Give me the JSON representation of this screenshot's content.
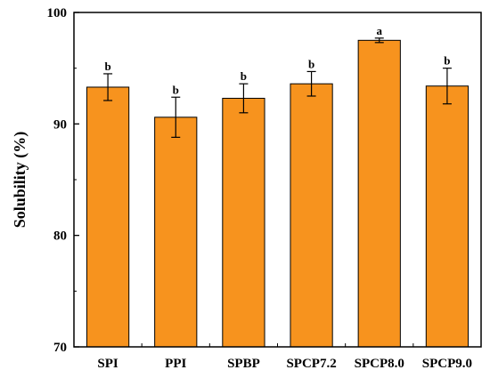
{
  "chart_data": {
    "type": "bar",
    "categories": [
      "SPI",
      "PPI",
      "SPBP",
      "SPCP7.2",
      "SPCP8.0",
      "SPCP9.0"
    ],
    "values": [
      93.3,
      90.6,
      92.3,
      93.6,
      97.5,
      93.4
    ],
    "errors": [
      1.2,
      1.8,
      1.3,
      1.1,
      0.2,
      1.6
    ],
    "significance": [
      "b",
      "b",
      "b",
      "b",
      "a",
      "b"
    ],
    "ylabel": "Solubility (%)",
    "xlabel": "",
    "ylim": [
      70,
      100
    ],
    "yticks": [
      70,
      80,
      90,
      100
    ],
    "bar_color": "#F7931E",
    "grid": false,
    "legend": "none"
  }
}
